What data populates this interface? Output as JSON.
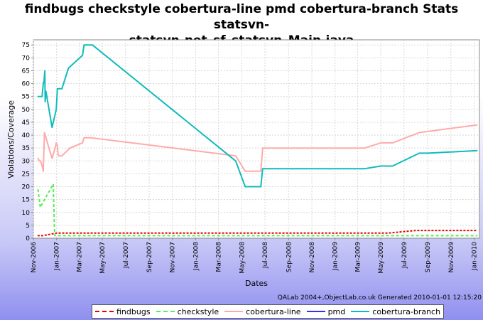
{
  "chart_data": {
    "type": "line",
    "title_lines": [
      "findbugs checkstyle cobertura-line pmd cobertura-branch  Stats statsvn-",
      "statsvn-net_sf_statsvn_Main.java"
    ],
    "xlabel": "Dates",
    "ylabel": "Violations/Coverage",
    "ylim": [
      0,
      77
    ],
    "yticks": [
      0,
      5,
      10,
      15,
      20,
      25,
      30,
      35,
      40,
      45,
      50,
      55,
      60,
      65,
      70,
      75
    ],
    "xlim": [
      "2006-11-01",
      "2010-01-15"
    ],
    "xticks": [
      {
        "date": "2006-11-01",
        "label": "Nov-2006"
      },
      {
        "date": "2007-01-01",
        "label": "Jan-2007"
      },
      {
        "date": "2007-03-01",
        "label": "Mar-2007"
      },
      {
        "date": "2007-05-01",
        "label": "May-2007"
      },
      {
        "date": "2007-07-01",
        "label": "Jul-2007"
      },
      {
        "date": "2007-09-01",
        "label": "Sep-2007"
      },
      {
        "date": "2007-11-01",
        "label": "Nov-2007"
      },
      {
        "date": "2008-01-01",
        "label": "Jan-2008"
      },
      {
        "date": "2008-03-01",
        "label": "Mar-2008"
      },
      {
        "date": "2008-05-01",
        "label": "May-2008"
      },
      {
        "date": "2008-07-01",
        "label": "Jul-2008"
      },
      {
        "date": "2008-09-01",
        "label": "Sep-2008"
      },
      {
        "date": "2008-11-01",
        "label": "Nov-2008"
      },
      {
        "date": "2009-01-01",
        "label": "Jan-2009"
      },
      {
        "date": "2009-03-01",
        "label": "Mar-2009"
      },
      {
        "date": "2009-05-01",
        "label": "May-2009"
      },
      {
        "date": "2009-07-01",
        "label": "Jul-2009"
      },
      {
        "date": "2009-09-01",
        "label": "Sep-2009"
      },
      {
        "date": "2009-11-01",
        "label": "Nov-2009"
      },
      {
        "date": "2010-01-01",
        "label": "Jan-2010"
      }
    ],
    "grid": true,
    "legend_position": "bottom",
    "series": [
      {
        "name": "findbugs",
        "color": "#ee0000",
        "dash": "3,2",
        "points": [
          [
            "2006-11-12",
            1
          ],
          [
            "2006-11-26",
            1
          ],
          [
            "2006-12-31",
            2
          ],
          [
            "2007-02-05",
            2
          ],
          [
            "2007-03-15",
            2
          ],
          [
            "2008-12-31",
            2
          ],
          [
            "2009-05-20",
            2
          ],
          [
            "2009-08-01",
            3
          ],
          [
            "2010-01-10",
            3
          ]
        ]
      },
      {
        "name": "checkstyle",
        "color": "#55ee55",
        "dash": "4,3",
        "points": [
          [
            "2006-11-13",
            19
          ],
          [
            "2006-11-19",
            12
          ],
          [
            "2006-12-23",
            21
          ],
          [
            "2006-12-27",
            1
          ],
          [
            "2010-01-10",
            1
          ]
        ]
      },
      {
        "name": "cobertura-line",
        "color": "#ffaaaa",
        "dash": "",
        "points": [
          [
            "2006-11-12",
            31
          ],
          [
            "2006-11-14",
            31
          ],
          [
            "2006-11-16",
            30
          ],
          [
            "2006-11-20",
            30
          ],
          [
            "2006-11-24",
            28
          ],
          [
            "2006-11-27",
            26
          ],
          [
            "2006-11-30",
            41
          ],
          [
            "2006-12-10",
            36
          ],
          [
            "2006-12-20",
            31
          ],
          [
            "2006-12-28",
            35
          ],
          [
            "2006-12-31",
            37
          ],
          [
            "2007-01-03",
            36
          ],
          [
            "2007-01-05",
            32
          ],
          [
            "2007-01-15",
            32
          ],
          [
            "2007-02-05",
            35
          ],
          [
            "2007-03-10",
            37
          ],
          [
            "2007-03-14",
            39
          ],
          [
            "2007-04-01",
            39
          ],
          [
            "2008-04-15",
            32
          ],
          [
            "2008-05-10",
            26
          ],
          [
            "2008-06-20",
            26
          ],
          [
            "2008-06-25",
            35
          ],
          [
            "2009-03-20",
            35
          ],
          [
            "2009-05-01",
            37
          ],
          [
            "2009-06-01",
            37
          ],
          [
            "2009-08-10",
            41
          ],
          [
            "2010-01-10",
            44
          ]
        ]
      },
      {
        "name": "pmd",
        "color": "#3333ee",
        "dash": "",
        "points": []
      },
      {
        "name": "cobertura-branch",
        "color": "#11bbbb",
        "dash": "",
        "points": [
          [
            "2006-11-12",
            55
          ],
          [
            "2006-11-24",
            55
          ],
          [
            "2006-11-27",
            60
          ],
          [
            "2006-11-29",
            61
          ],
          [
            "2006-12-01",
            65
          ],
          [
            "2006-12-02",
            53
          ],
          [
            "2006-12-04",
            57
          ],
          [
            "2006-12-20",
            43
          ],
          [
            "2006-12-31",
            50
          ],
          [
            "2007-01-03",
            58
          ],
          [
            "2007-01-15",
            58
          ],
          [
            "2007-02-01",
            66
          ],
          [
            "2007-03-10",
            71
          ],
          [
            "2007-03-14",
            75
          ],
          [
            "2007-04-05",
            75
          ],
          [
            "2008-04-15",
            30
          ],
          [
            "2008-05-10",
            20
          ],
          [
            "2008-06-20",
            20
          ],
          [
            "2008-06-25",
            27
          ],
          [
            "2009-03-20",
            27
          ],
          [
            "2009-05-01",
            28
          ],
          [
            "2009-06-01",
            28
          ],
          [
            "2009-08-10",
            33
          ],
          [
            "2009-09-01",
            33
          ],
          [
            "2010-01-10",
            34
          ]
        ]
      }
    ]
  },
  "footer": "QALab 2004+,ObjectLab.co.uk  Generated 2010-01-01 12:15:20"
}
